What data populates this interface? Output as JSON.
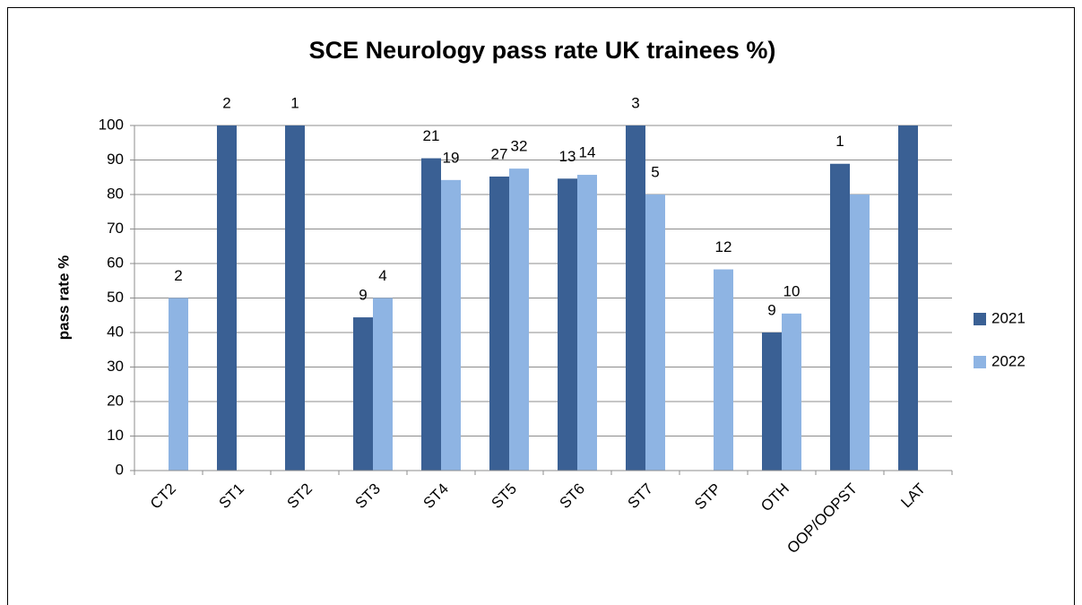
{
  "chart_data": {
    "type": "bar",
    "title": "SCE Neurology pass rate UK trainees %)",
    "y_label": "pass rate %",
    "categories": [
      "CT2",
      "ST1",
      "ST2",
      "ST3",
      "ST4",
      "ST5",
      "ST6",
      "ST7",
      "STP",
      "OTH",
      "OOP/OOPST",
      "LAT"
    ],
    "series": [
      {
        "name": "2021",
        "color": "#3a6094",
        "values": [
          null,
          100,
          100,
          44.4,
          90.5,
          85.2,
          84.6,
          100,
          null,
          40,
          88.9,
          100
        ],
        "annotations": [
          null,
          2,
          1,
          9,
          21,
          27,
          13,
          3,
          null,
          9,
          1,
          null
        ]
      },
      {
        "name": "2022",
        "color": "#8eb4e3",
        "values": [
          50,
          null,
          null,
          50,
          84.2,
          87.5,
          85.7,
          80,
          58.3,
          45.5,
          80,
          null
        ],
        "annotations": [
          2,
          null,
          null,
          4,
          19,
          32,
          14,
          5,
          12,
          10,
          null,
          null
        ]
      }
    ],
    "ylim": [
      0,
      100
    ],
    "yticks": [
      0,
      10,
      20,
      30,
      40,
      50,
      60,
      70,
      80,
      90,
      100
    ],
    "grid": true,
    "legend": "right"
  }
}
